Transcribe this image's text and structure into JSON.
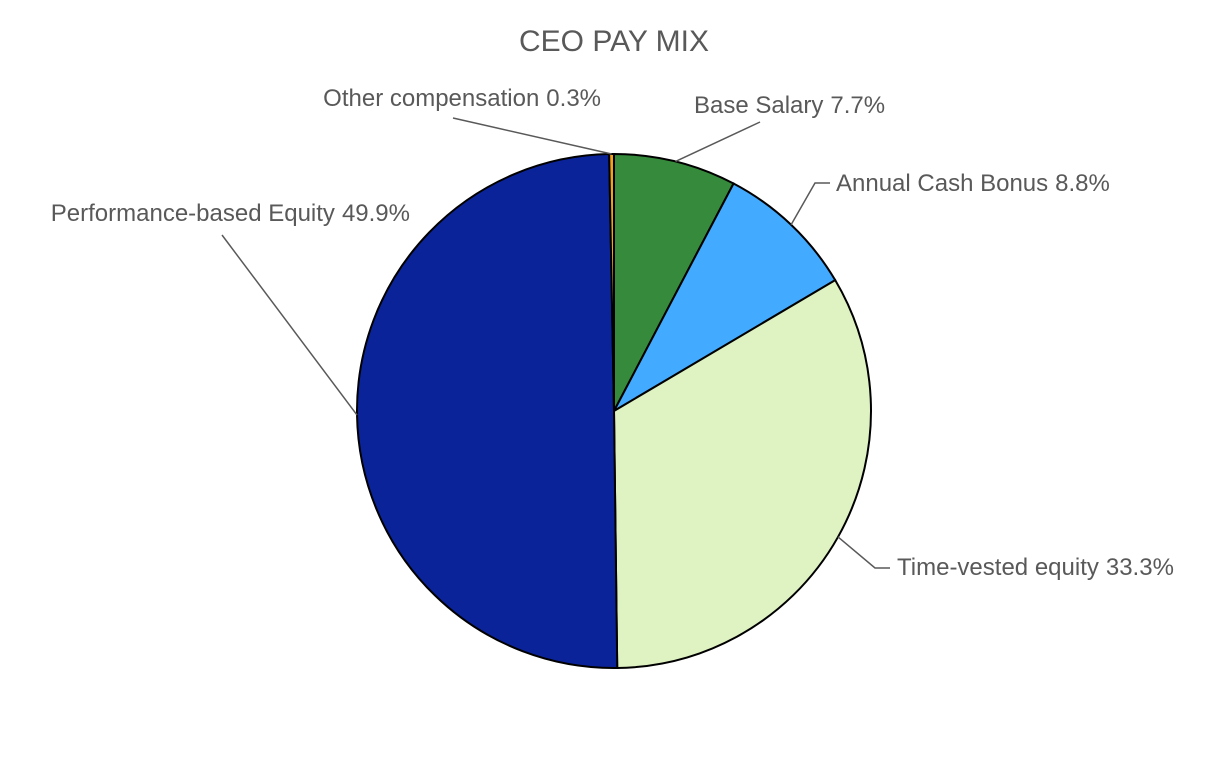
{
  "chart_data": {
    "type": "pie",
    "title": "CEO PAY MIX",
    "categories": [
      "Base Salary",
      "Annual Cash Bonus",
      "Time-vested equity",
      "Performance-based Equity",
      "Other compensation"
    ],
    "values": [
      7.7,
      8.8,
      33.3,
      49.9,
      0.3
    ],
    "value_labels": [
      "7.7%",
      "8.8%",
      "33.3%",
      "49.9%",
      "0.3%"
    ],
    "colors": [
      "#368a3b",
      "#42aaff",
      "#dff2c2",
      "#0b2399",
      "#f4a21a"
    ]
  }
}
